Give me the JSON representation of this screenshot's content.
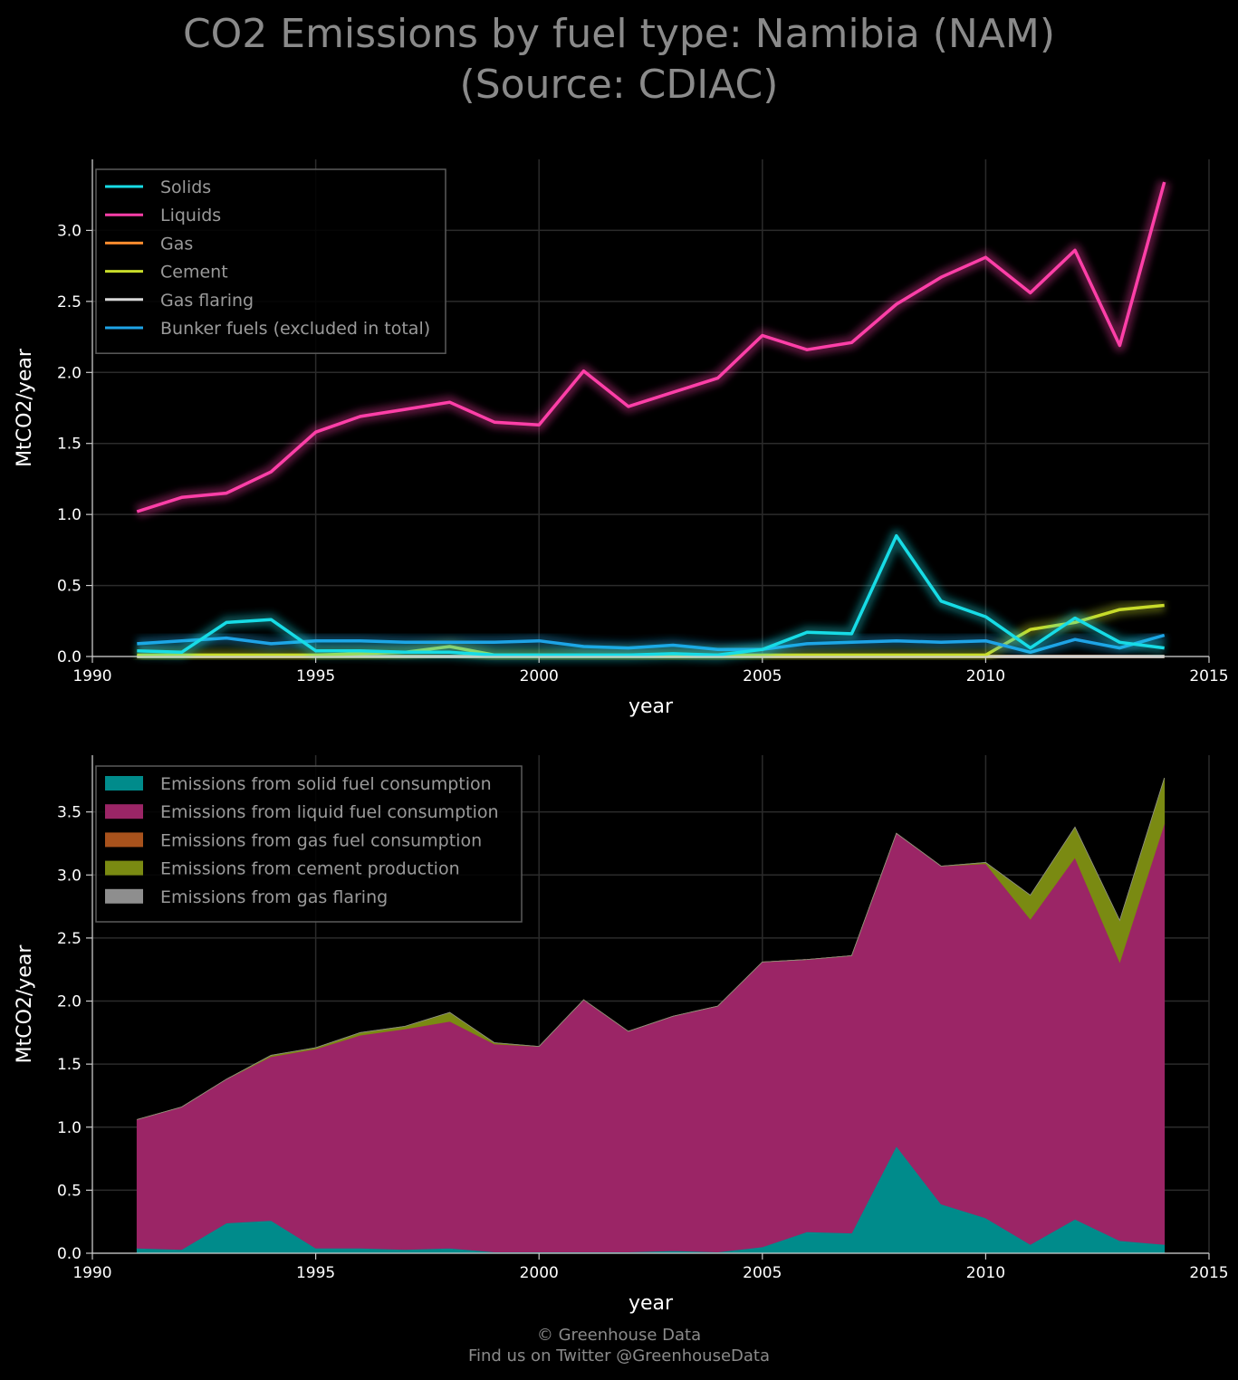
{
  "title_line1": "CO2 Emissions by fuel type: Namibia (NAM)",
  "title_line2": "(Source: CDIAC)",
  "footer_line1": "© Greenhouse Data",
  "footer_line2": "Find us on Twitter @GreenhouseData",
  "chart_data": [
    {
      "type": "line",
      "xlabel": "year",
      "ylabel": "MtCO2/year",
      "xlim": [
        1990,
        2015
      ],
      "ylim": [
        0,
        3.5
      ],
      "xticks": [
        1990,
        1995,
        2000,
        2005,
        2010,
        2015
      ],
      "yticks": [
        0.0,
        0.5,
        1.0,
        1.5,
        2.0,
        2.5,
        3.0
      ],
      "grid": true,
      "legend_position": "top-left",
      "x": [
        1991,
        1992,
        1993,
        1994,
        1995,
        1996,
        1997,
        1998,
        1999,
        2000,
        2001,
        2002,
        2003,
        2004,
        2005,
        2006,
        2007,
        2008,
        2009,
        2010,
        2011,
        2012,
        2013,
        2014
      ],
      "series": [
        {
          "name": "Solids",
          "color": "#17dce6",
          "values": [
            0.04,
            0.03,
            0.24,
            0.26,
            0.04,
            0.04,
            0.03,
            0.03,
            0.01,
            0.01,
            0.01,
            0.01,
            0.02,
            0.01,
            0.05,
            0.17,
            0.16,
            0.85,
            0.39,
            0.28,
            0.06,
            0.27,
            0.1,
            0.06
          ]
        },
        {
          "name": "Liquids",
          "color": "#ff3fa8",
          "values": [
            1.02,
            1.12,
            1.15,
            1.3,
            1.58,
            1.69,
            1.74,
            1.79,
            1.65,
            1.63,
            2.01,
            1.76,
            1.86,
            1.96,
            2.26,
            2.16,
            2.21,
            2.48,
            2.67,
            2.81,
            2.56,
            2.86,
            2.19,
            3.34
          ]
        },
        {
          "name": "Gas",
          "color": "#ff8c2e",
          "values": [
            0,
            0,
            0,
            0,
            0,
            0,
            0,
            0,
            0,
            0,
            0,
            0,
            0,
            0,
            0,
            0,
            0,
            0,
            0,
            0,
            0,
            0,
            0,
            0
          ]
        },
        {
          "name": "Cement",
          "color": "#c8dc2a",
          "values": [
            0.01,
            0.01,
            0.01,
            0.01,
            0.01,
            0.02,
            0.03,
            0.07,
            0.01,
            0.01,
            0.01,
            0.01,
            0.01,
            0.01,
            0.01,
            0.01,
            0.01,
            0.01,
            0.01,
            0.01,
            0.19,
            0.24,
            0.33,
            0.36
          ]
        },
        {
          "name": "Gas flaring",
          "color": "#d8d8d8",
          "values": [
            0,
            0,
            0,
            0,
            0,
            0,
            0,
            0,
            0,
            0,
            0,
            0,
            0,
            0,
            0,
            0,
            0,
            0,
            0,
            0,
            0,
            0,
            0,
            0
          ]
        },
        {
          "name": "Bunker fuels (excluded in total)",
          "color": "#1ea3e6",
          "values": [
            0.09,
            0.11,
            0.13,
            0.09,
            0.11,
            0.11,
            0.1,
            0.1,
            0.1,
            0.11,
            0.07,
            0.06,
            0.08,
            0.05,
            0.05,
            0.09,
            0.1,
            0.11,
            0.1,
            0.11,
            0.03,
            0.12,
            0.06,
            0.15
          ]
        }
      ]
    },
    {
      "type": "area",
      "stacked": true,
      "xlabel": "year",
      "ylabel": "MtCO2/year",
      "xlim": [
        1990,
        2015
      ],
      "ylim": [
        0,
        3.95
      ],
      "xticks": [
        1990,
        1995,
        2000,
        2005,
        2010,
        2015
      ],
      "yticks": [
        0.0,
        0.5,
        1.0,
        1.5,
        2.0,
        2.5,
        3.0,
        3.5
      ],
      "grid": true,
      "legend_position": "top-left",
      "x": [
        1991,
        1992,
        1993,
        1994,
        1995,
        1996,
        1997,
        1998,
        1999,
        2000,
        2001,
        2002,
        2003,
        2004,
        2005,
        2006,
        2007,
        2008,
        2009,
        2010,
        2011,
        2012,
        2013,
        2014
      ],
      "series": [
        {
          "name": "Emissions from solid fuel consumption",
          "color": "#008b8b",
          "values": [
            0.04,
            0.03,
            0.24,
            0.26,
            0.04,
            0.04,
            0.03,
            0.04,
            0.01,
            0.01,
            0.01,
            0.01,
            0.02,
            0.01,
            0.05,
            0.17,
            0.16,
            0.85,
            0.39,
            0.28,
            0.07,
            0.27,
            0.1,
            0.07
          ]
        },
        {
          "name": "Emissions from liquid fuel consumption",
          "color": "#9b2566",
          "values": [
            1.02,
            1.13,
            1.14,
            1.3,
            1.58,
            1.69,
            1.75,
            1.8,
            1.65,
            1.63,
            2.0,
            1.75,
            1.86,
            1.95,
            2.26,
            2.16,
            2.2,
            2.48,
            2.68,
            2.81,
            2.58,
            2.87,
            2.21,
            3.34
          ]
        },
        {
          "name": "Emissions from gas fuel consumption",
          "color": "#a8521c",
          "values": [
            0,
            0,
            0,
            0,
            0,
            0,
            0,
            0,
            0,
            0,
            0,
            0,
            0,
            0,
            0,
            0,
            0,
            0,
            0,
            0,
            0,
            0,
            0,
            0
          ]
        },
        {
          "name": "Emissions from cement production",
          "color": "#7a8a12",
          "values": [
            0.0,
            0.0,
            0.0,
            0.01,
            0.01,
            0.02,
            0.02,
            0.07,
            0.01,
            0.0,
            0.0,
            0.0,
            0.0,
            0.0,
            0.0,
            0.0,
            0.0,
            0.0,
            0.0,
            0.01,
            0.19,
            0.24,
            0.33,
            0.36
          ]
        },
        {
          "name": "Emissions from gas flaring",
          "color": "#8e8e8e",
          "values": [
            0,
            0,
            0,
            0,
            0,
            0,
            0,
            0,
            0,
            0,
            0,
            0,
            0,
            0,
            0,
            0,
            0,
            0,
            0,
            0,
            0,
            0,
            0,
            0
          ]
        }
      ]
    }
  ]
}
